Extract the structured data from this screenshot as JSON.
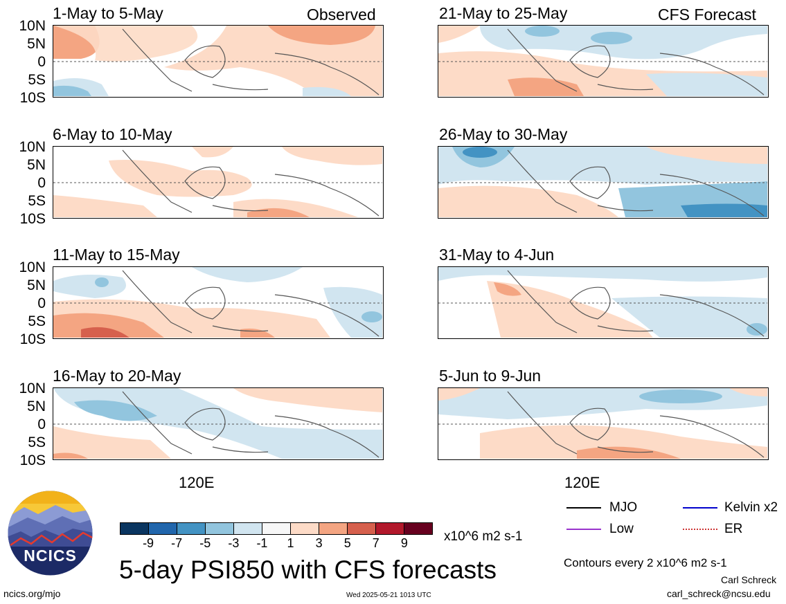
{
  "panels": [
    {
      "title": "1-May to 5-May",
      "tag": "Observed"
    },
    {
      "title": "6-May to 10-May",
      "tag": ""
    },
    {
      "title": "11-May to 15-May",
      "tag": ""
    },
    {
      "title": "16-May to 20-May",
      "tag": ""
    },
    {
      "title": "21-May to 25-May",
      "tag": "CFS Forecast"
    },
    {
      "title": "26-May to 30-May",
      "tag": ""
    },
    {
      "title": "31-May to 4-Jun",
      "tag": ""
    },
    {
      "title": "5-Jun to 9-Jun",
      "tag": ""
    }
  ],
  "lat_labels": [
    "10N",
    "5N",
    "0",
    "5S",
    "10S"
  ],
  "lon_label": "120E",
  "colorbar": {
    "labels": [
      "-9",
      "-7",
      "-5",
      "-3",
      "-1",
      "1",
      "3",
      "5",
      "7",
      "9"
    ],
    "colors": [
      "#0a3560",
      "#2166ac",
      "#4393c3",
      "#92c5de",
      "#d1e5f0",
      "#f7f7f7",
      "#fddbc7",
      "#f4a582",
      "#d6604d",
      "#b2182b",
      "#67001f"
    ],
    "units": "x10^6 m2 s-1"
  },
  "legend": {
    "mjo": "MJO",
    "kelvin": "Kelvin x2",
    "low": "Low",
    "er": "ER",
    "colors": {
      "mjo": "#000000",
      "kelvin": "#0000cc",
      "low": "#9933cc",
      "er": "#cc3333"
    }
  },
  "contours_note": "Contours every 2 x10^6 m2 s-1",
  "main_title": "5-day PSI850 with CFS forecasts",
  "author": "Carl Schreck",
  "email": "carl_schreck@ncsu.edu",
  "website": "ncics.org/mjo",
  "timestamp": "Wed 2025-05-21 1013 UTC",
  "logo_text": "NCICS"
}
